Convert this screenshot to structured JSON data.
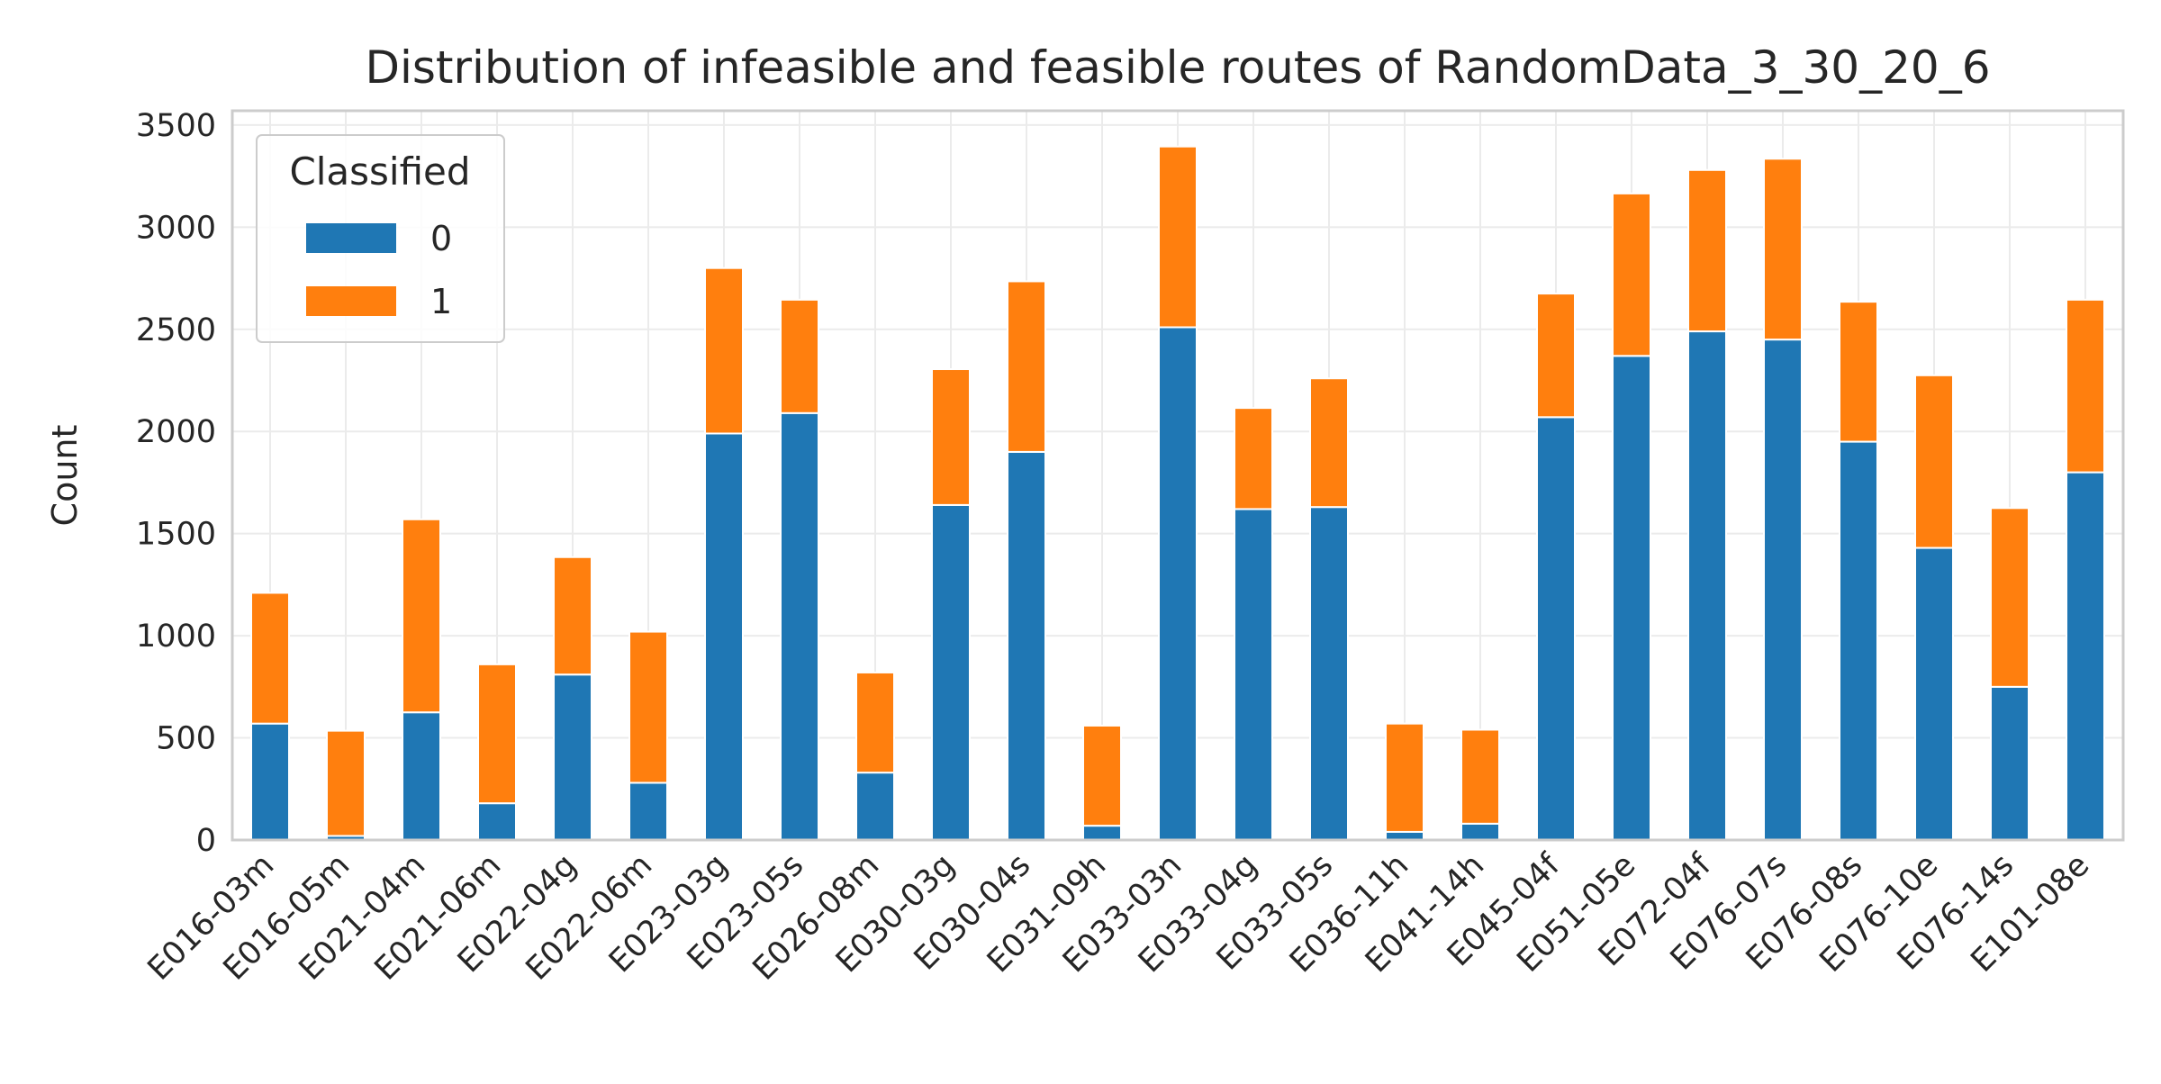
{
  "chart_data": {
    "type": "bar",
    "stacked": true,
    "title": "Distribution of infeasible and feasible routes of RandomData_3_30_20_6",
    "xlabel": "",
    "ylabel": "Count",
    "ylim": [
      0,
      3570
    ],
    "yticks": [
      0,
      500,
      1000,
      1500,
      2000,
      2500,
      3000,
      3500
    ],
    "grid": true,
    "legend": {
      "title": "Classified",
      "position": "top-left"
    },
    "categories": [
      "E016-03m",
      "E016-05m",
      "E021-04m",
      "E021-06m",
      "E022-04g",
      "E022-06m",
      "E023-03g",
      "E023-05s",
      "E026-08m",
      "E030-03g",
      "E030-04s",
      "E031-09h",
      "E033-03n",
      "E033-04g",
      "E033-05s",
      "E036-11h",
      "E041-14h",
      "E045-04f",
      "E051-05e",
      "E072-04f",
      "E076-07s",
      "E076-08s",
      "E076-10e",
      "E076-14s",
      "E101-08e"
    ],
    "series": [
      {
        "name": "0",
        "color": "#1f77b4",
        "values": [
          570,
          20,
          625,
          180,
          810,
          280,
          1990,
          2090,
          330,
          1640,
          1900,
          70,
          2510,
          1620,
          1630,
          40,
          80,
          2070,
          2370,
          2490,
          2450,
          1950,
          1430,
          750,
          1800
        ]
      },
      {
        "name": "1",
        "color": "#ff7f0e",
        "values": [
          640,
          515,
          945,
          680,
          575,
          740,
          810,
          555,
          490,
          665,
          835,
          490,
          885,
          495,
          630,
          530,
          460,
          605,
          795,
          790,
          885,
          685,
          845,
          875,
          845
        ]
      }
    ]
  }
}
